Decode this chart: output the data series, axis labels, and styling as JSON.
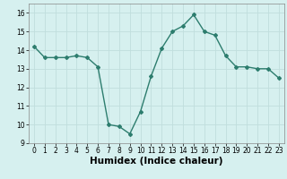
{
  "x": [
    0,
    1,
    2,
    3,
    4,
    5,
    6,
    7,
    8,
    9,
    10,
    11,
    12,
    13,
    14,
    15,
    16,
    17,
    18,
    19,
    20,
    21,
    22,
    23
  ],
  "y": [
    14.2,
    13.6,
    13.6,
    13.6,
    13.7,
    13.6,
    13.1,
    10.0,
    9.9,
    9.5,
    10.7,
    12.6,
    14.1,
    15.0,
    15.3,
    15.9,
    15.0,
    14.8,
    13.7,
    13.1,
    13.1,
    13.0,
    13.0,
    12.5
  ],
  "line_color": "#2d7d6e",
  "marker": "D",
  "marker_size": 2,
  "linewidth": 1.0,
  "xlabel": "Humidex (Indice chaleur)",
  "xlim": [
    -0.5,
    23.5
  ],
  "ylim": [
    9,
    16.5
  ],
  "yticks": [
    9,
    10,
    11,
    12,
    13,
    14,
    15,
    16
  ],
  "xticks": [
    0,
    1,
    2,
    3,
    4,
    5,
    6,
    7,
    8,
    9,
    10,
    11,
    12,
    13,
    14,
    15,
    16,
    17,
    18,
    19,
    20,
    21,
    22,
    23
  ],
  "background_color": "#d6f0ef",
  "grid_color": "#c0dedd",
  "tick_fontsize": 5.5,
  "xlabel_fontsize": 7.5
}
